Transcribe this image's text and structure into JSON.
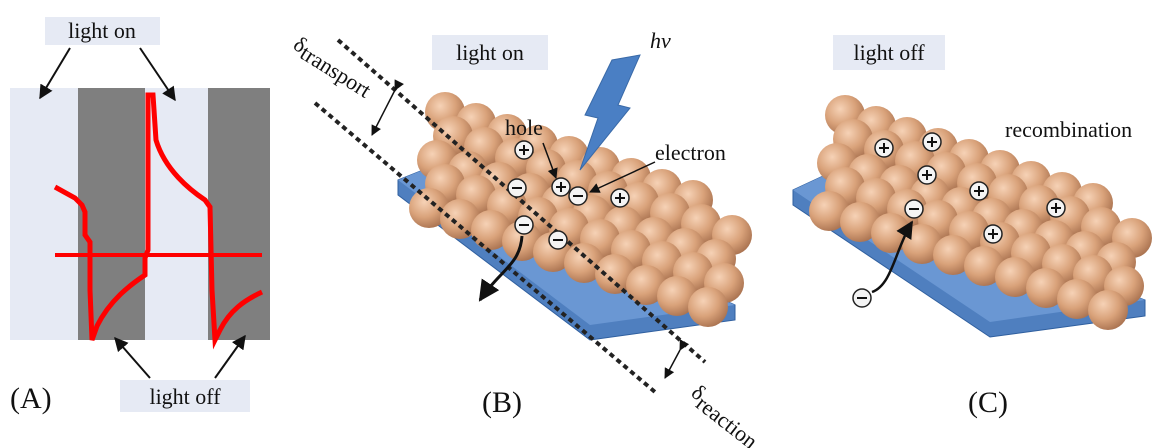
{
  "panel_a": {
    "label": "(A)",
    "light_on": "light on",
    "light_off": "light off"
  },
  "panel_b": {
    "label": "(B)",
    "light_on": "light on",
    "hv": "hv",
    "hole": "hole",
    "electron": "electron",
    "transport": {
      "symbol": "δ",
      "subscript": "transport"
    },
    "reaction": {
      "symbol": "δ",
      "subscript": "reaction"
    }
  },
  "panel_c": {
    "label": "(C)",
    "light_off": "light off",
    "recombination": "recombination"
  }
}
